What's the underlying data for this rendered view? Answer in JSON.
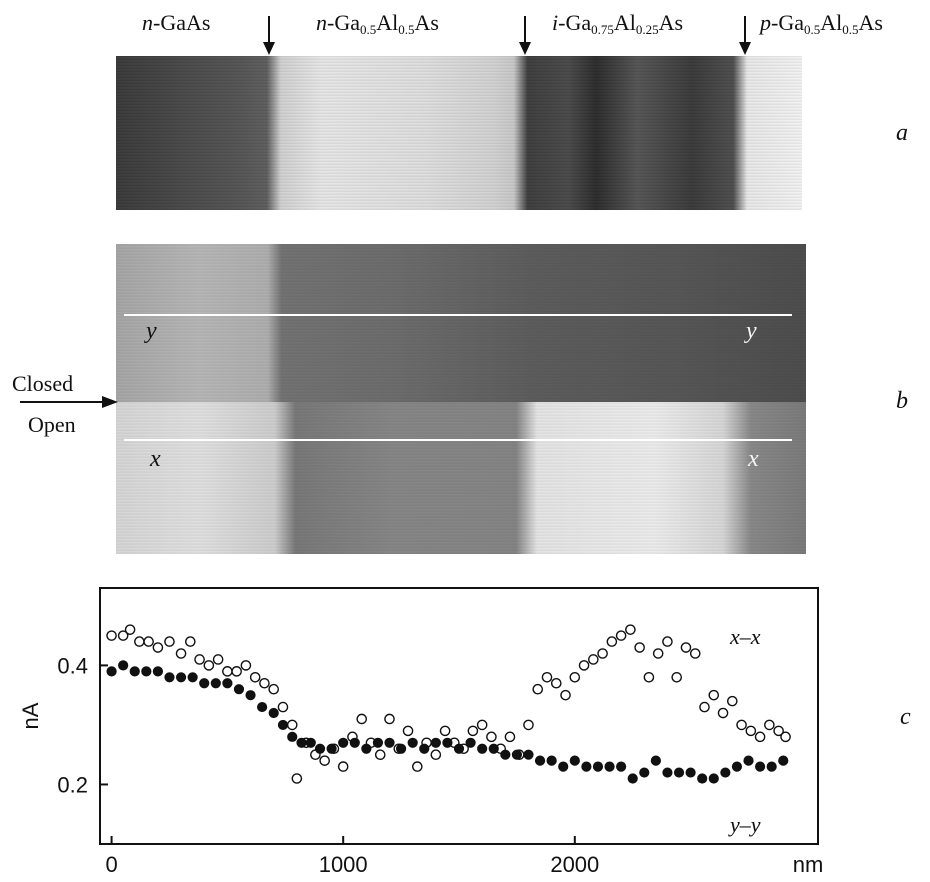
{
  "layers": [
    {
      "prefix": "n",
      "base": "-GaAs"
    },
    {
      "prefix": "n",
      "base": "-Ga",
      "s1": "0.5",
      "mid": "Al",
      "s2": "0.5",
      "tail": "As"
    },
    {
      "prefix": "i",
      "base": "-Ga",
      "s1": "0.75",
      "mid": "Al",
      "s2": "0.25",
      "tail": "As"
    },
    {
      "prefix": "p",
      "base": "-Ga",
      "s1": "0.5",
      "mid": "Al",
      "s2": "0.5",
      "tail": "As"
    }
  ],
  "panel_letters": {
    "a": "a",
    "b": "b",
    "c": "c"
  },
  "panel_b": {
    "line_top_label": "y",
    "line_bottom_label": "x",
    "closed": "Closed",
    "open": "Open"
  },
  "chart_data": {
    "type": "scatter",
    "ylabel": "nA",
    "x_unit_label": "nm",
    "xlim": [
      -50,
      3050
    ],
    "ylim": [
      0.1,
      0.53
    ],
    "x_ticks": [
      0,
      1000,
      2000
    ],
    "y_ticks": [
      0.2,
      0.4
    ],
    "x_tick_labels": [
      "0",
      "1000",
      "2000"
    ],
    "y_tick_labels": [
      "0.2",
      "0.4"
    ],
    "series": [
      {
        "name": "x–x",
        "marker": "open-circle",
        "points": [
          [
            0,
            0.45
          ],
          [
            50,
            0.45
          ],
          [
            80,
            0.46
          ],
          [
            120,
            0.44
          ],
          [
            160,
            0.44
          ],
          [
            200,
            0.43
          ],
          [
            250,
            0.44
          ],
          [
            300,
            0.42
          ],
          [
            340,
            0.44
          ],
          [
            380,
            0.41
          ],
          [
            420,
            0.4
          ],
          [
            460,
            0.41
          ],
          [
            500,
            0.39
          ],
          [
            540,
            0.39
          ],
          [
            580,
            0.4
          ],
          [
            620,
            0.38
          ],
          [
            660,
            0.37
          ],
          [
            700,
            0.36
          ],
          [
            740,
            0.33
          ],
          [
            780,
            0.3
          ],
          [
            800,
            0.21
          ],
          [
            840,
            0.27
          ],
          [
            880,
            0.25
          ],
          [
            920,
            0.24
          ],
          [
            960,
            0.26
          ],
          [
            1000,
            0.23
          ],
          [
            1040,
            0.28
          ],
          [
            1080,
            0.31
          ],
          [
            1120,
            0.27
          ],
          [
            1160,
            0.25
          ],
          [
            1200,
            0.31
          ],
          [
            1240,
            0.26
          ],
          [
            1280,
            0.29
          ],
          [
            1320,
            0.23
          ],
          [
            1360,
            0.27
          ],
          [
            1400,
            0.25
          ],
          [
            1440,
            0.29
          ],
          [
            1480,
            0.27
          ],
          [
            1520,
            0.26
          ],
          [
            1560,
            0.29
          ],
          [
            1600,
            0.3
          ],
          [
            1640,
            0.28
          ],
          [
            1680,
            0.26
          ],
          [
            1720,
            0.28
          ],
          [
            1760,
            0.25
          ],
          [
            1800,
            0.3
          ],
          [
            1840,
            0.36
          ],
          [
            1880,
            0.38
          ],
          [
            1920,
            0.37
          ],
          [
            1960,
            0.35
          ],
          [
            2000,
            0.38
          ],
          [
            2040,
            0.4
          ],
          [
            2080,
            0.41
          ],
          [
            2120,
            0.42
          ],
          [
            2160,
            0.44
          ],
          [
            2200,
            0.45
          ],
          [
            2240,
            0.46
          ],
          [
            2280,
            0.43
          ],
          [
            2320,
            0.38
          ],
          [
            2360,
            0.42
          ],
          [
            2400,
            0.44
          ],
          [
            2440,
            0.38
          ],
          [
            2480,
            0.43
          ],
          [
            2520,
            0.42
          ],
          [
            2560,
            0.33
          ],
          [
            2600,
            0.35
          ],
          [
            2640,
            0.32
          ],
          [
            2680,
            0.34
          ],
          [
            2720,
            0.3
          ],
          [
            2760,
            0.29
          ],
          [
            2800,
            0.28
          ],
          [
            2840,
            0.3
          ],
          [
            2880,
            0.29
          ],
          [
            2910,
            0.28
          ]
        ]
      },
      {
        "name": "y–y",
        "marker": "filled-circle",
        "points": [
          [
            0,
            0.39
          ],
          [
            50,
            0.4
          ],
          [
            100,
            0.39
          ],
          [
            150,
            0.39
          ],
          [
            200,
            0.39
          ],
          [
            250,
            0.38
          ],
          [
            300,
            0.38
          ],
          [
            350,
            0.38
          ],
          [
            400,
            0.37
          ],
          [
            450,
            0.37
          ],
          [
            500,
            0.37
          ],
          [
            550,
            0.36
          ],
          [
            600,
            0.35
          ],
          [
            650,
            0.33
          ],
          [
            700,
            0.32
          ],
          [
            740,
            0.3
          ],
          [
            780,
            0.28
          ],
          [
            820,
            0.27
          ],
          [
            860,
            0.27
          ],
          [
            900,
            0.26
          ],
          [
            950,
            0.26
          ],
          [
            1000,
            0.27
          ],
          [
            1050,
            0.27
          ],
          [
            1100,
            0.26
          ],
          [
            1150,
            0.27
          ],
          [
            1200,
            0.27
          ],
          [
            1250,
            0.26
          ],
          [
            1300,
            0.27
          ],
          [
            1350,
            0.26
          ],
          [
            1400,
            0.27
          ],
          [
            1450,
            0.27
          ],
          [
            1500,
            0.26
          ],
          [
            1550,
            0.27
          ],
          [
            1600,
            0.26
          ],
          [
            1650,
            0.26
          ],
          [
            1700,
            0.25
          ],
          [
            1750,
            0.25
          ],
          [
            1800,
            0.25
          ],
          [
            1850,
            0.24
          ],
          [
            1900,
            0.24
          ],
          [
            1950,
            0.23
          ],
          [
            2000,
            0.24
          ],
          [
            2050,
            0.23
          ],
          [
            2100,
            0.23
          ],
          [
            2150,
            0.23
          ],
          [
            2200,
            0.23
          ],
          [
            2250,
            0.21
          ],
          [
            2300,
            0.22
          ],
          [
            2350,
            0.24
          ],
          [
            2400,
            0.22
          ],
          [
            2450,
            0.22
          ],
          [
            2500,
            0.22
          ],
          [
            2550,
            0.21
          ],
          [
            2600,
            0.21
          ],
          [
            2650,
            0.22
          ],
          [
            2700,
            0.23
          ],
          [
            2750,
            0.24
          ],
          [
            2800,
            0.23
          ],
          [
            2850,
            0.23
          ],
          [
            2900,
            0.24
          ]
        ]
      }
    ]
  }
}
